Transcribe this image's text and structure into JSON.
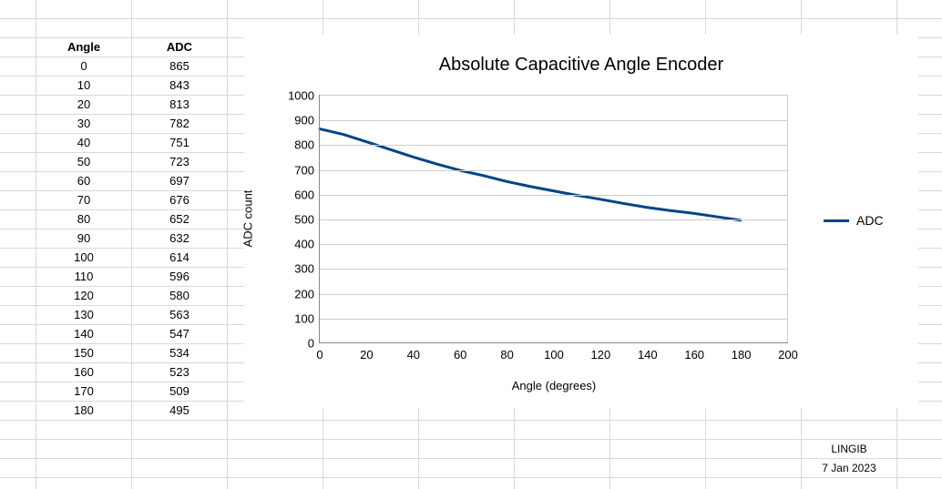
{
  "table": {
    "headers": {
      "angle": "Angle",
      "adc": "ADC"
    },
    "rows": [
      {
        "angle": "0",
        "adc": "865"
      },
      {
        "angle": "10",
        "adc": "843"
      },
      {
        "angle": "20",
        "adc": "813"
      },
      {
        "angle": "30",
        "adc": "782"
      },
      {
        "angle": "40",
        "adc": "751"
      },
      {
        "angle": "50",
        "adc": "723"
      },
      {
        "angle": "60",
        "adc": "697"
      },
      {
        "angle": "70",
        "adc": "676"
      },
      {
        "angle": "80",
        "adc": "652"
      },
      {
        "angle": "90",
        "adc": "632"
      },
      {
        "angle": "100",
        "adc": "614"
      },
      {
        "angle": "110",
        "adc": "596"
      },
      {
        "angle": "120",
        "adc": "580"
      },
      {
        "angle": "130",
        "adc": "563"
      },
      {
        "angle": "140",
        "adc": "547"
      },
      {
        "angle": "150",
        "adc": "534"
      },
      {
        "angle": "160",
        "adc": "523"
      },
      {
        "angle": "170",
        "adc": "509"
      },
      {
        "angle": "180",
        "adc": "495"
      }
    ]
  },
  "footer": {
    "author": "LINGIB",
    "date": "7 Jan 2023"
  },
  "chart": {
    "type": "line",
    "title": "Absolute Capacitive Angle Encoder",
    "title_fontsize": 20,
    "xlabel": "Angle (degrees)",
    "ylabel": "ADC count",
    "label_fontsize": 13,
    "tick_fontsize": 13,
    "xlim": [
      0,
      200
    ],
    "ylim": [
      0,
      1000
    ],
    "xticks": [
      0,
      20,
      40,
      60,
      80,
      100,
      120,
      140,
      160,
      180,
      200
    ],
    "yticks": [
      0,
      100,
      200,
      300,
      400,
      500,
      600,
      700,
      800,
      900,
      1000
    ],
    "grid_color": "#cccccc",
    "axis_color": "#888888",
    "background_color": "#ffffff",
    "series": [
      {
        "name": "ADC",
        "color": "#004586",
        "line_width": 3,
        "x": [
          0,
          10,
          20,
          30,
          40,
          50,
          60,
          70,
          80,
          90,
          100,
          110,
          120,
          130,
          140,
          150,
          160,
          170,
          180
        ],
        "y": [
          865,
          843,
          813,
          782,
          751,
          723,
          697,
          676,
          652,
          632,
          614,
          596,
          580,
          563,
          547,
          534,
          523,
          509,
          495
        ]
      }
    ],
    "legend": {
      "position": "right",
      "label": "ADC"
    }
  },
  "sheet": {
    "total_cols": 11,
    "total_rows": 26,
    "data_start_col": 1,
    "data_start_row": 2
  }
}
